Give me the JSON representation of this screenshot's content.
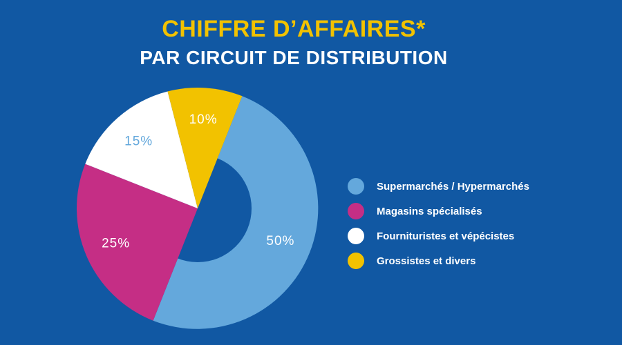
{
  "header": {
    "title": "CHIFFRE D’AFFAIRES*",
    "subtitle": "PAR CIRCUIT DE DISTRIBUTION"
  },
  "colors": {
    "background": "#1158a3",
    "title": "#f2c200",
    "hole": "#1158a3"
  },
  "chart_data": {
    "type": "pie",
    "style": "donut",
    "title": "CHIFFRE D’AFFAIRES*",
    "subtitle": "PAR CIRCUIT DE DISTRIBUTION",
    "legend_position": "right",
    "slices": [
      {
        "label": "Supermarchés / Hypermarchés",
        "value": 50,
        "display": "50%",
        "color": "#64a8dc",
        "text_color": "#ffffff"
      },
      {
        "label": "Magasins spécialisés",
        "value": 25,
        "display": "25%",
        "color": "#c52e85",
        "text_color": "#ffffff"
      },
      {
        "label": "Fournituristes et vépécistes",
        "value": 15,
        "display": "15%",
        "color": "#ffffff",
        "text_color": "#64a8dc"
      },
      {
        "label": "Grossistes et divers",
        "value": 10,
        "display": "10%",
        "color": "#f2c200",
        "text_color": "#ffffff"
      }
    ]
  }
}
